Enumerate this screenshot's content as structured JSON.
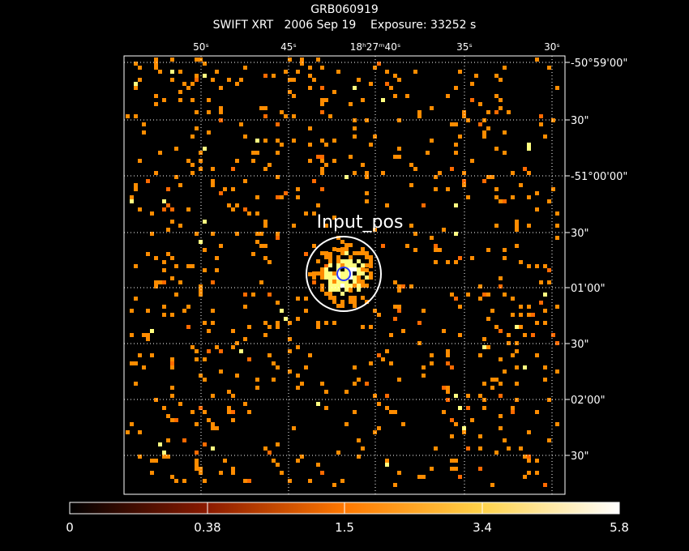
{
  "header": {
    "title": "GRB060919",
    "subtitle": "SWIFT XRT   2006 Sep 19    Exposure: 33252 s"
  },
  "region": {
    "label": "Input_pos"
  },
  "chart_data": {
    "type": "heatmap",
    "title": "GRB060919",
    "subtitle": "SWIFT XRT   2006 Sep 19    Exposure: 33252 s",
    "grid": true,
    "grid_style": "dotted",
    "ra_ticks": [
      "50ˢ",
      "45ˢ",
      "18ʰ27ᵐ40ˢ",
      "35ˢ",
      "30ˢ"
    ],
    "dec_ticks": [
      "-50°59'00\"",
      "30\"",
      "-51°00'00\"",
      "30\"",
      "01'00\"",
      "30\"",
      "02'00\"",
      "30\""
    ],
    "colorbar": {
      "ticks": [
        "0",
        "0.38",
        "1.5",
        "3.4",
        "5.8"
      ],
      "min": 0,
      "max": 5.8,
      "colormap": "heat"
    },
    "colors": {
      "low": "#5a0000",
      "mid": "#ff8c00",
      "high": "#ffff80",
      "max": "#ffffff",
      "marker_outer": "#ffffff",
      "marker_inner": "#2a3cff"
    },
    "source": {
      "label": "Input_pos"
    }
  }
}
